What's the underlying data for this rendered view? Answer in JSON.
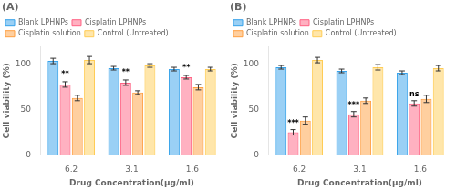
{
  "chart_data": [
    {
      "type": "bar",
      "title": "(A)",
      "xlabel": "Drug Concentration(μg/ml)",
      "ylabel": "Cell viability (%)",
      "categories": [
        "6.2",
        "3.1",
        "1.6"
      ],
      "series": [
        {
          "name": "Blank LPHNPs",
          "values": [
            104,
            96,
            95
          ],
          "errors": [
            3,
            2,
            2
          ]
        },
        {
          "name": "Cisplatin LPHNPs",
          "values": [
            78,
            80,
            86
          ],
          "errors": [
            3,
            3,
            2
          ]
        },
        {
          "name": "Cisplatin solution",
          "values": [
            63,
            69,
            75
          ],
          "errors": [
            3,
            2,
            3
          ]
        },
        {
          "name": "Control (Untreated)",
          "values": [
            105,
            99,
            95
          ],
          "errors": [
            4,
            2,
            2
          ]
        }
      ],
      "annotations": [
        {
          "text": "**",
          "category": "6.2",
          "series": "Cisplatin LPHNPs",
          "y": 84
        },
        {
          "text": "**",
          "category": "3.1",
          "series": "Cisplatin LPHNPs",
          "y": 86
        },
        {
          "text": "**",
          "category": "1.6",
          "series": "Cisplatin LPHNPs",
          "y": 91
        }
      ],
      "ylim": [
        0,
        120
      ],
      "yticks": [
        0,
        50,
        100
      ],
      "grid": false,
      "legend": "top"
    },
    {
      "type": "bar",
      "title": "(B)",
      "xlabel": "Drug Concentration(μg/ml)",
      "ylabel": "Cell viability (%)",
      "categories": [
        "6.2",
        "3.1",
        "1.6"
      ],
      "series": [
        {
          "name": "Blank LPHNPs",
          "values": [
            97,
            93,
            91
          ],
          "errors": [
            2,
            2,
            2
          ]
        },
        {
          "name": "Cisplatin LPHNPs",
          "values": [
            25,
            45,
            57
          ],
          "errors": [
            3,
            3,
            3
          ]
        },
        {
          "name": "Cisplatin solution",
          "values": [
            38,
            60,
            62
          ],
          "errors": [
            4,
            3,
            4
          ]
        },
        {
          "name": "Control (Untreated)",
          "values": [
            105,
            97,
            96
          ],
          "errors": [
            3,
            3,
            3
          ]
        }
      ],
      "annotations": [
        {
          "text": "***",
          "category": "6.2",
          "series": "Cisplatin LPHNPs",
          "y": 30
        },
        {
          "text": "***",
          "category": "3.1",
          "series": "Cisplatin LPHNPs",
          "y": 50
        },
        {
          "text": "ns",
          "category": "1.6",
          "series": "Cisplatin LPHNPs",
          "y": 62
        }
      ],
      "ylim": [
        0,
        120
      ],
      "yticks": [
        0,
        50,
        100
      ],
      "grid": false,
      "legend": "top"
    }
  ]
}
